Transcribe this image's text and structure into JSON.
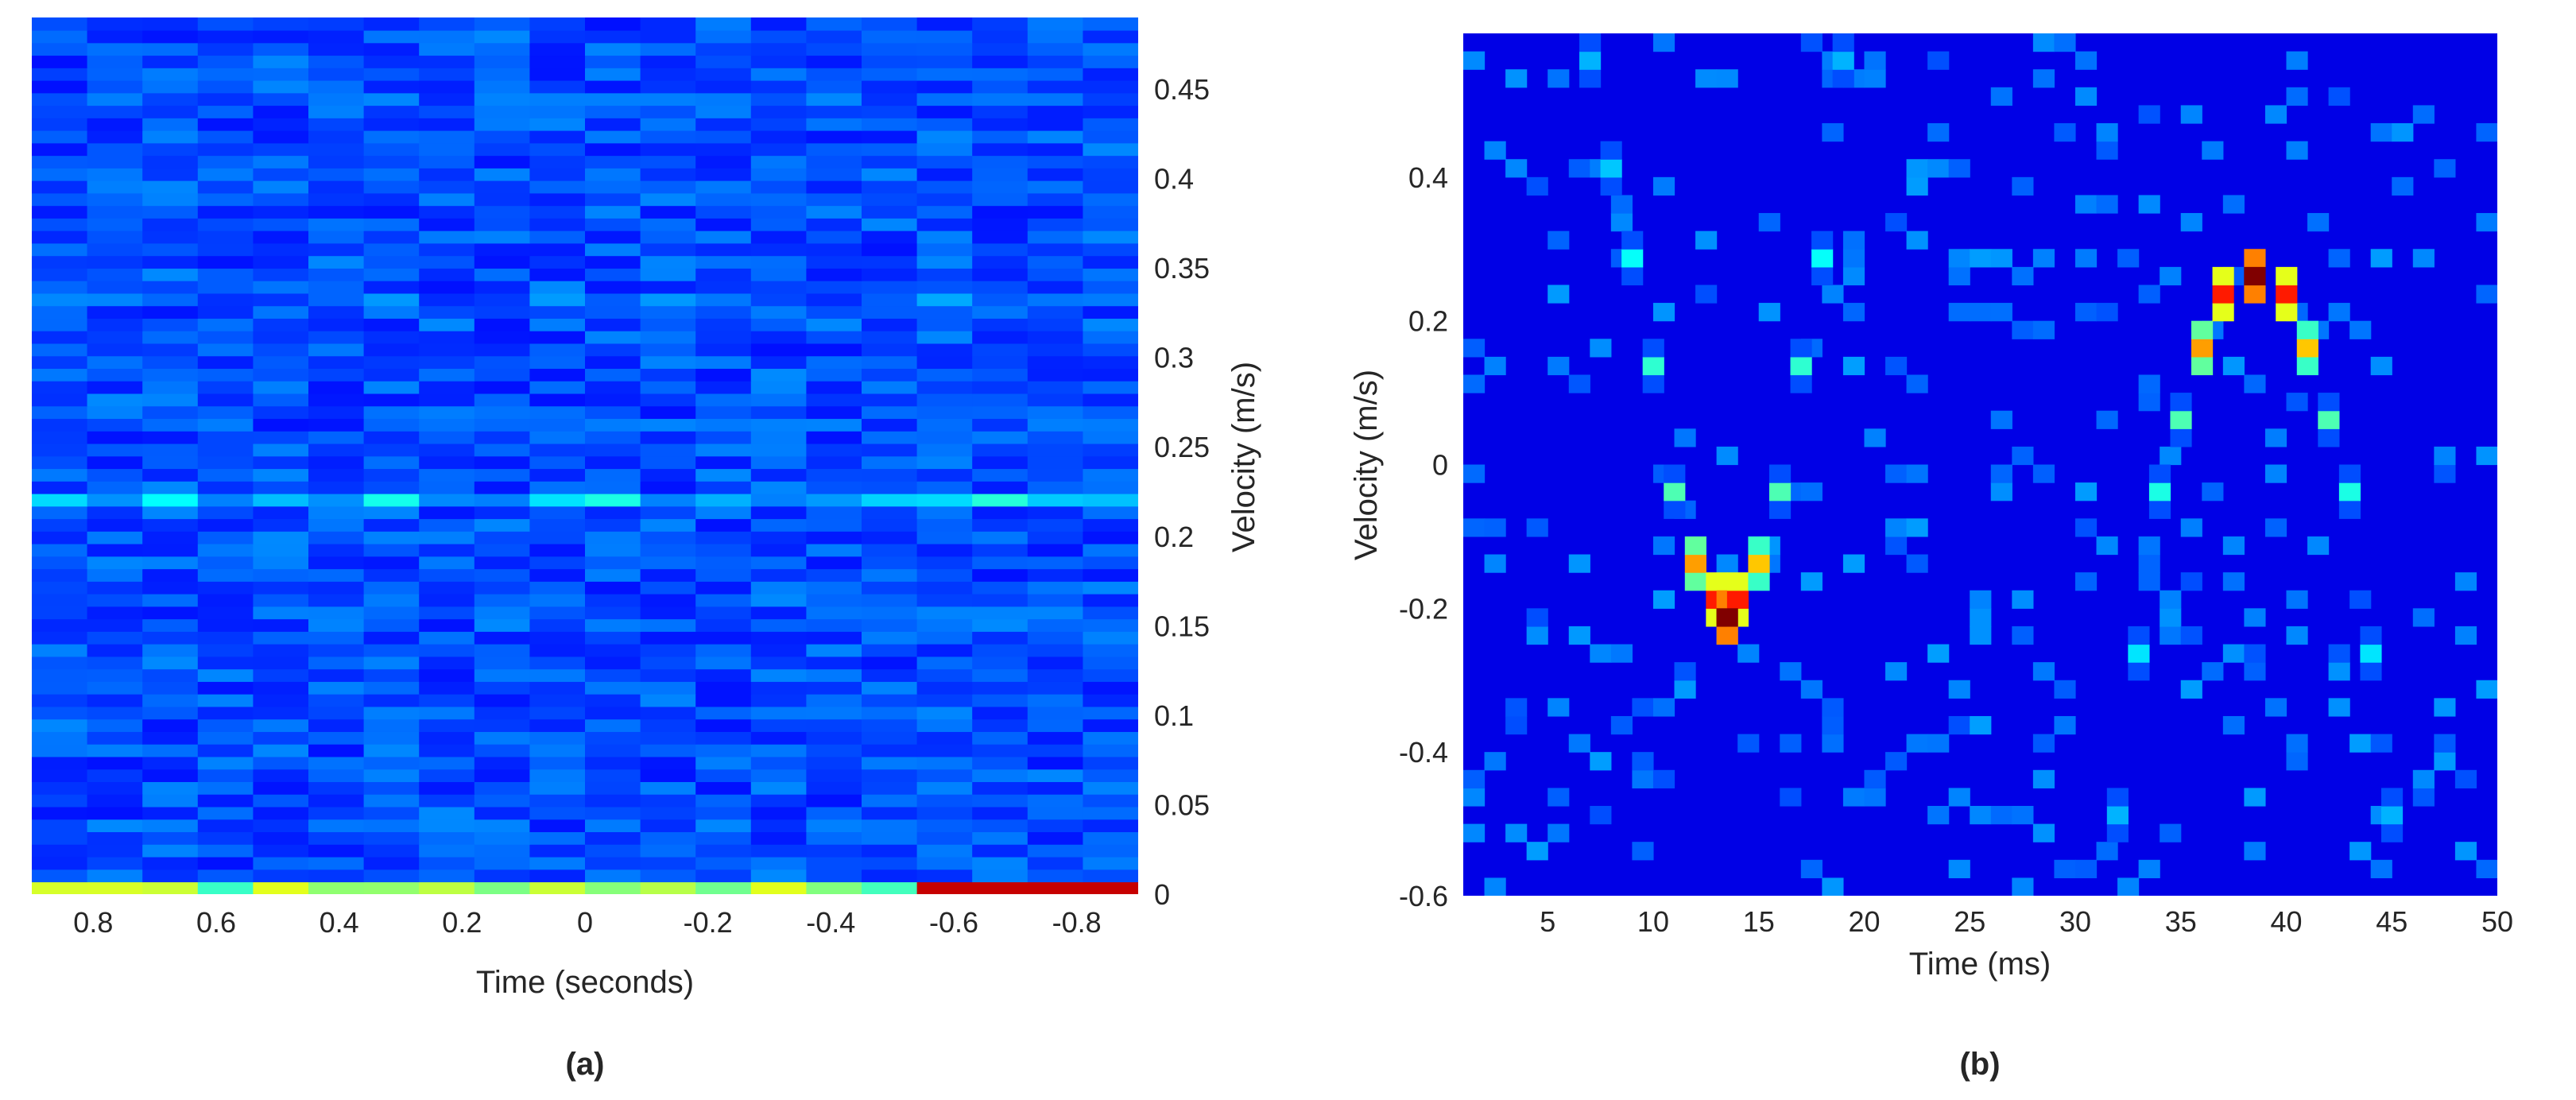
{
  "chart_data": [
    {
      "panel_label": "(a)",
      "type": "heatmap",
      "colormap": "jet",
      "xlabel": "Time (seconds)",
      "ylabel": "Velocity (m/s)",
      "ylabel_side": "right",
      "x_direction": "reversed",
      "xlim": [
        0.9,
        -0.9
      ],
      "ylim": [
        0,
        0.49
      ],
      "xticks": [
        0.8,
        0.6,
        0.4,
        0.2,
        0,
        -0.2,
        -0.4,
        -0.6,
        -0.8
      ],
      "xtick_labels": [
        "0.8",
        "0.6",
        "0.4",
        "0.2",
        "0",
        "-0.2",
        "-0.4",
        "-0.6",
        "-0.8"
      ],
      "yticks": [
        0,
        0.05,
        0.1,
        0.15,
        0.2,
        0.25,
        0.3,
        0.35,
        0.4,
        0.45
      ],
      "ytick_labels": [
        "0",
        "0.05",
        "0.1",
        "0.15",
        "0.2",
        "0.25",
        "0.3",
        "0.35",
        "0.4",
        "0.45"
      ],
      "grid": false,
      "features": [
        {
          "y": 0.007,
          "intensity": 0.5,
          "note": "bottom velocity bin, strongest values; red for time < -0.5"
        },
        {
          "y": 0.22,
          "intensity": 0.38,
          "note": "brighter band around 0.22 m/s"
        },
        {
          "y": 0.33,
          "intensity": 0.33,
          "note": "faint band around 0.33 m/s"
        }
      ]
    },
    {
      "panel_label": "(b)",
      "type": "heatmap",
      "colormap": "jet",
      "xlabel": "Time (ms)",
      "ylabel": "Velocity (m/s)",
      "xlim": [
        1,
        50
      ],
      "ylim": [
        -0.6,
        0.6
      ],
      "xticks": [
        5,
        10,
        15,
        20,
        25,
        30,
        35,
        40,
        45,
        50
      ],
      "xtick_labels": [
        "5",
        "10",
        "15",
        "20",
        "25",
        "30",
        "35",
        "40",
        "45",
        "50"
      ],
      "yticks": [
        -0.6,
        -0.4,
        -0.2,
        0,
        0.2,
        0.4
      ],
      "ytick_labels": [
        "-0.6",
        "-0.4",
        "-0.2",
        "0",
        "0.2",
        "0.4"
      ],
      "grid": false,
      "background_intensity": 0.1,
      "peaks": [
        {
          "time": 13.5,
          "velocity": -0.225,
          "intensity": 1.0
        },
        {
          "time": 38.5,
          "velocity": 0.265,
          "intensity": 1.0
        }
      ],
      "curve_points": [
        {
          "time": 7,
          "velocity": 0.55,
          "intensity": 0.3
        },
        {
          "time": 8,
          "velocity": 0.42,
          "intensity": 0.32
        },
        {
          "time": 9,
          "velocity": 0.29,
          "intensity": 0.38
        },
        {
          "time": 10,
          "velocity": 0.14,
          "intensity": 0.42
        },
        {
          "time": 11,
          "velocity": -0.03,
          "intensity": 0.45
        },
        {
          "time": 12,
          "velocity": -0.13,
          "intensity": 0.72
        },
        {
          "time": 13,
          "velocity": -0.19,
          "intensity": 0.85
        },
        {
          "time": 13.5,
          "velocity": -0.225,
          "intensity": 1.0
        },
        {
          "time": 14,
          "velocity": -0.19,
          "intensity": 0.85
        },
        {
          "time": 15,
          "velocity": -0.13,
          "intensity": 0.68
        },
        {
          "time": 16,
          "velocity": -0.03,
          "intensity": 0.45
        },
        {
          "time": 17,
          "velocity": 0.14,
          "intensity": 0.42
        },
        {
          "time": 18,
          "velocity": 0.29,
          "intensity": 0.38
        },
        {
          "time": 19,
          "velocity": 0.55,
          "intensity": 0.3
        },
        {
          "time": 32,
          "velocity": -0.48,
          "intensity": 0.3
        },
        {
          "time": 33,
          "velocity": -0.26,
          "intensity": 0.35
        },
        {
          "time": 34,
          "velocity": -0.05,
          "intensity": 0.4
        },
        {
          "time": 35,
          "velocity": 0.07,
          "intensity": 0.45
        },
        {
          "time": 36,
          "velocity": 0.17,
          "intensity": 0.72
        },
        {
          "time": 37,
          "velocity": 0.24,
          "intensity": 0.85
        },
        {
          "time": 38.5,
          "velocity": 0.265,
          "intensity": 1.0
        },
        {
          "time": 40,
          "velocity": 0.24,
          "intensity": 0.85
        },
        {
          "time": 41,
          "velocity": 0.17,
          "intensity": 0.68
        },
        {
          "time": 42,
          "velocity": 0.07,
          "intensity": 0.45
        },
        {
          "time": 43,
          "velocity": -0.05,
          "intensity": 0.4
        },
        {
          "time": 44,
          "velocity": -0.26,
          "intensity": 0.35
        },
        {
          "time": 45,
          "velocity": -0.48,
          "intensity": 0.3
        }
      ]
    }
  ]
}
